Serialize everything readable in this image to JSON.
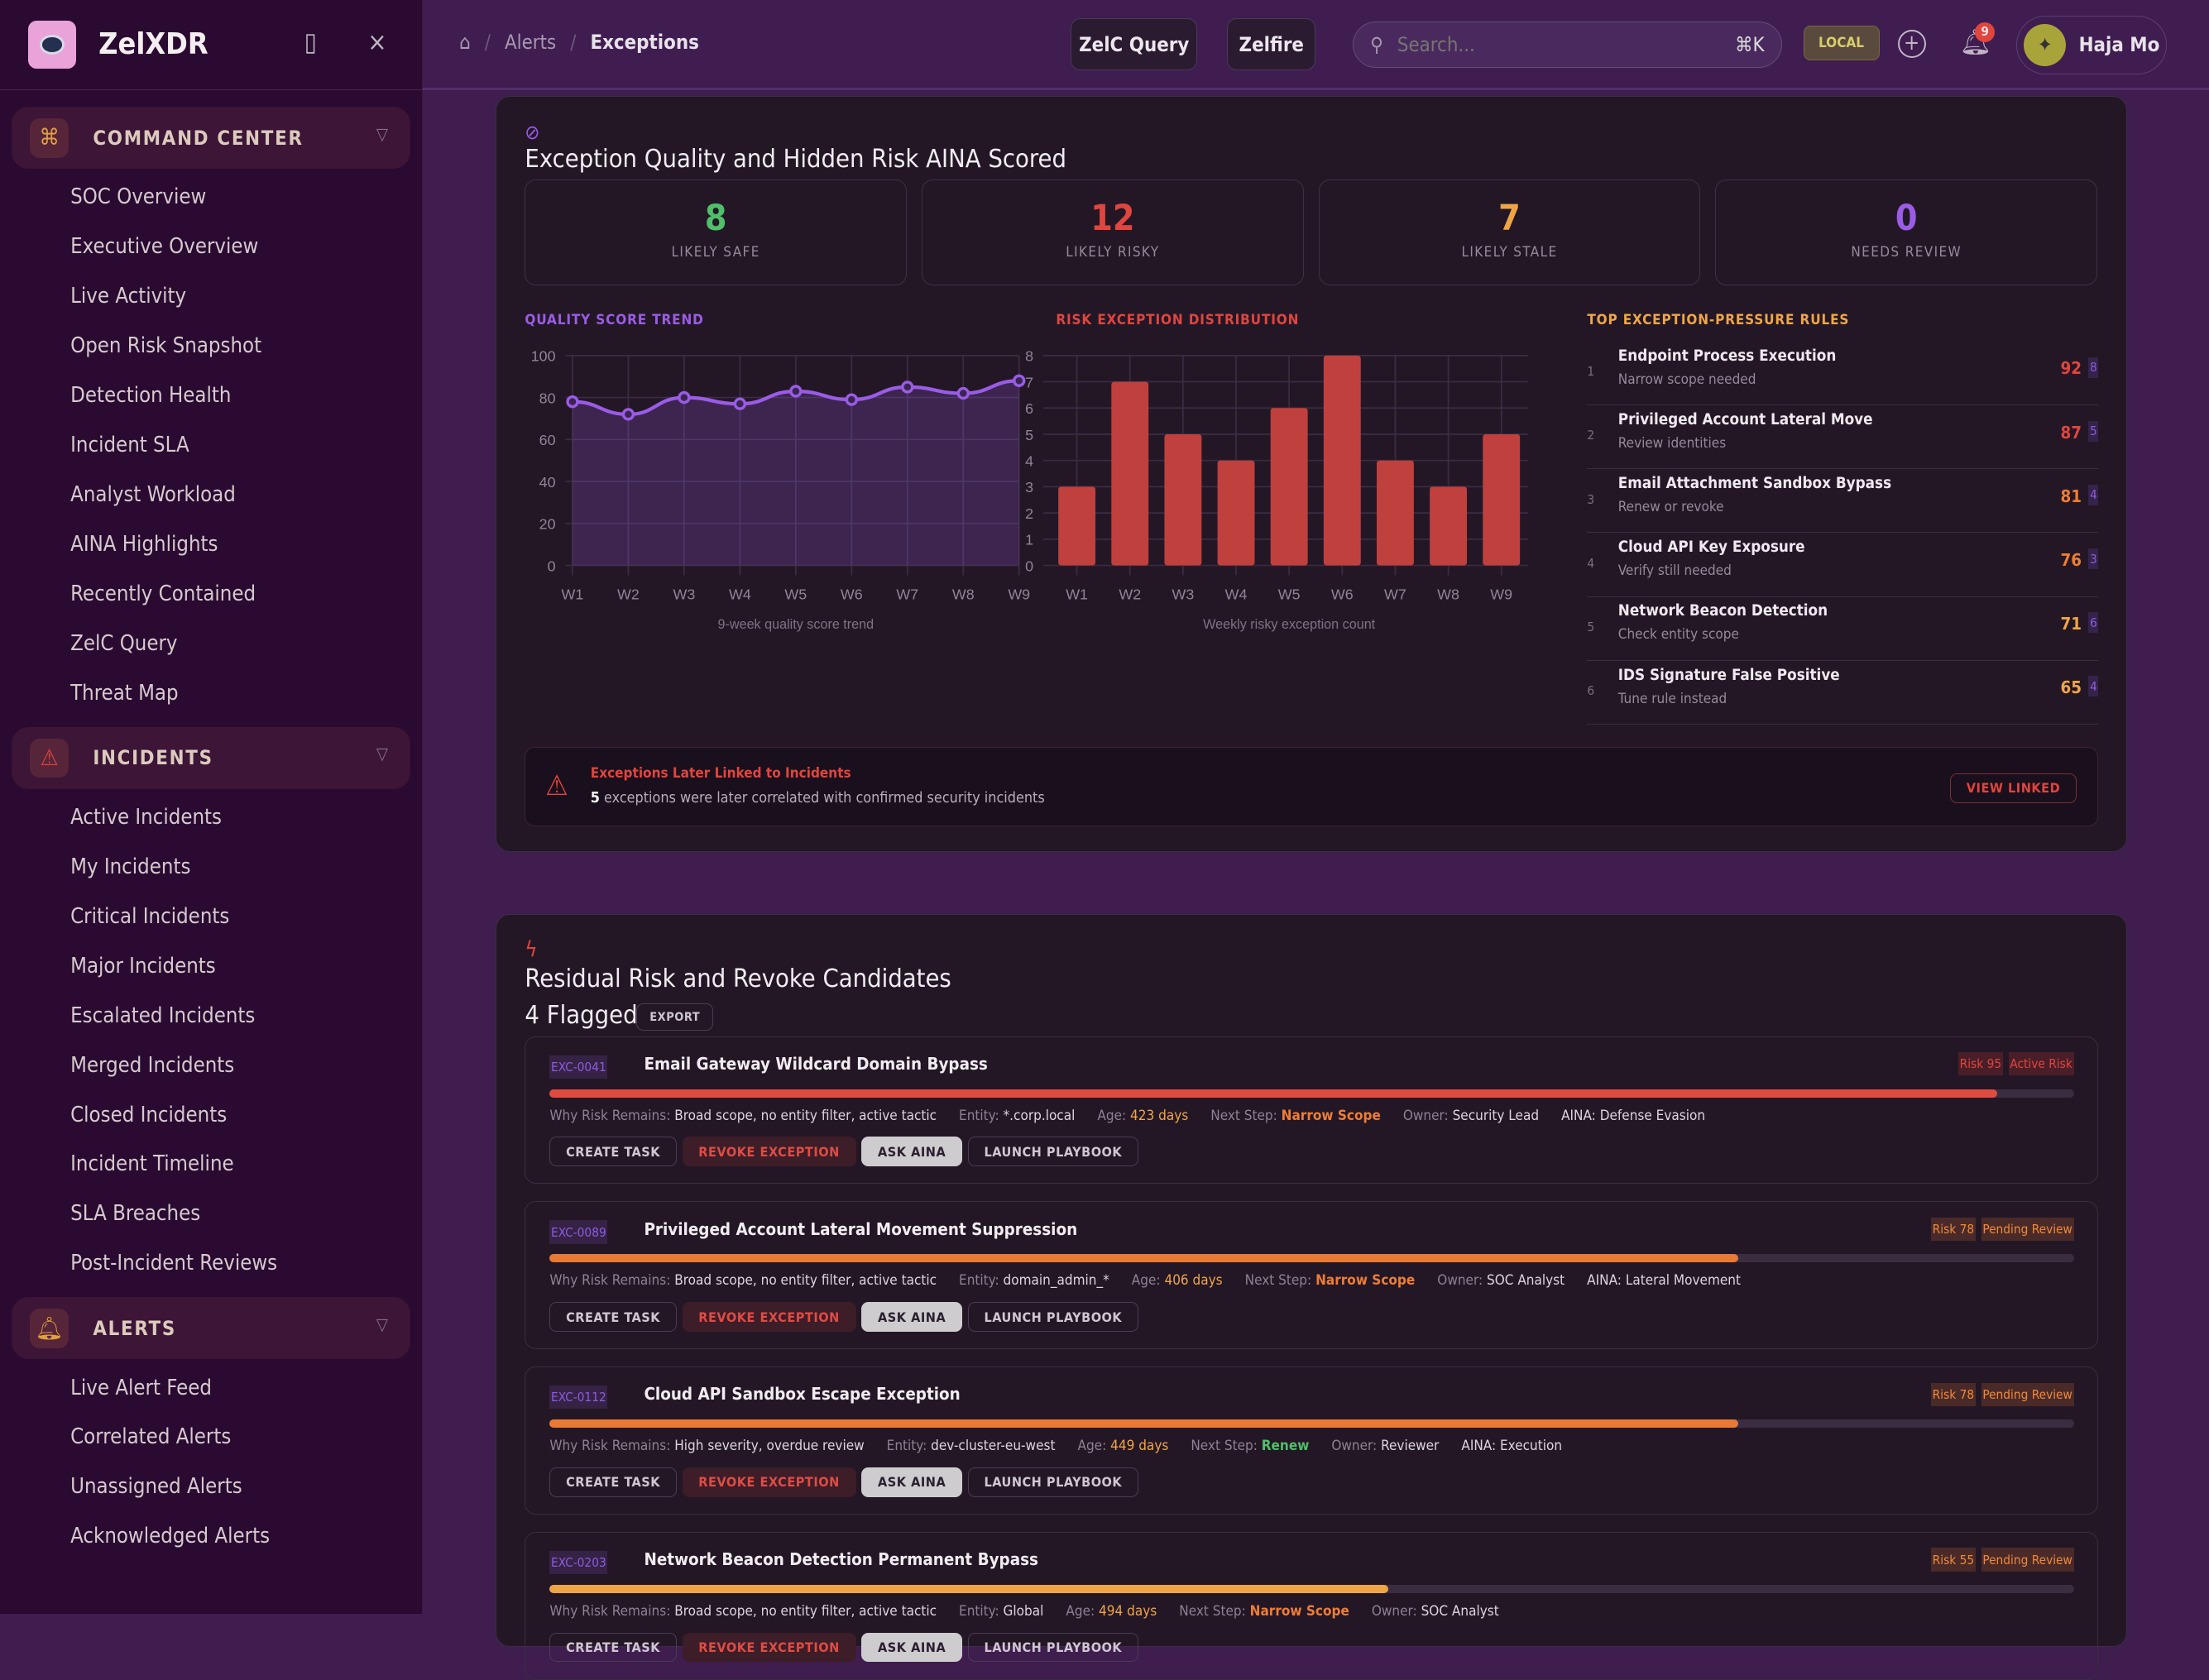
{
  "app": {
    "name": "ZelXDR"
  },
  "sidebar": {
    "sections": [
      {
        "title": "COMMAND CENTER",
        "icon": "command-icon",
        "items": [
          "SOC Overview",
          "Executive Overview",
          "Live Activity",
          "Open Risk Snapshot",
          "Detection Health",
          "Incident SLA",
          "Analyst Workload",
          "AINA Highlights",
          "Recently Contained",
          "ZelC Query",
          "Threat Map"
        ]
      },
      {
        "title": "INCIDENTS",
        "icon": "warning-icon",
        "items": [
          "Active Incidents",
          "My Incidents",
          "Critical Incidents",
          "Major Incidents",
          "Escalated Incidents",
          "Merged Incidents",
          "Closed Incidents",
          "Incident Timeline",
          "SLA Breaches",
          "Post-Incident Reviews"
        ]
      },
      {
        "title": "ALERTS",
        "icon": "bell-icon",
        "items": [
          "Live Alert Feed",
          "Correlated Alerts",
          "Unassigned Alerts",
          "Acknowledged Alerts"
        ]
      }
    ]
  },
  "header": {
    "breadcrumb": [
      "Alerts",
      "Exceptions"
    ],
    "zelc_query": "ZelC Query",
    "zelfire": "Zelfire",
    "search_placeholder": "Search...",
    "shortcut": "⌘K",
    "env": "LOCAL",
    "notifications": "9",
    "user": "Haja Mo"
  },
  "quality": {
    "title": "Exception Quality and Hidden Risk AINA Scored",
    "stats": [
      {
        "value": "8",
        "label": "LIKELY SAFE",
        "color": "#4fbf6a"
      },
      {
        "value": "12",
        "label": "LIKELY RISKY",
        "color": "#e0453e"
      },
      {
        "value": "7",
        "label": "LIKELY STALE",
        "color": "#f0a545"
      },
      {
        "value": "0",
        "label": "NEEDS REVIEW",
        "color": "#9a5ce6"
      }
    ],
    "rules_title": "TOP EXCEPTION-PRESSURE RULES",
    "rules": [
      {
        "rank": "1",
        "name": "Endpoint Process Execution",
        "note": "Narrow scope needed",
        "score": "92",
        "count": "8",
        "color": "#e0453e"
      },
      {
        "rank": "2",
        "name": "Privileged Account Lateral Move",
        "note": "Review identities",
        "score": "87",
        "count": "5",
        "color": "#e0453e"
      },
      {
        "rank": "3",
        "name": "Email Attachment Sandbox Bypass",
        "note": "Renew or revoke",
        "score": "81",
        "count": "4",
        "color": "#ef7d33"
      },
      {
        "rank": "4",
        "name": "Cloud API Key Exposure",
        "note": "Verify still needed",
        "score": "76",
        "count": "3",
        "color": "#ef7d33"
      },
      {
        "rank": "5",
        "name": "Network Beacon Detection",
        "note": "Check entity scope",
        "score": "71",
        "count": "6",
        "color": "#f0a545"
      },
      {
        "rank": "6",
        "name": "IDS Signature False Positive",
        "note": "Tune rule instead",
        "score": "65",
        "count": "4",
        "color": "#f0a545"
      }
    ],
    "alert": {
      "title": "Exceptions Later Linked to Incidents",
      "count": "5",
      "text": "exceptions were later correlated with confirmed security incidents",
      "button": "VIEW LINKED"
    }
  },
  "chart_data": [
    {
      "type": "area",
      "title": "QUALITY SCORE TREND",
      "caption": "9-week quality score trend",
      "categories": [
        "W1",
        "W2",
        "W3",
        "W4",
        "W5",
        "W6",
        "W7",
        "W8",
        "W9"
      ],
      "values": [
        78,
        72,
        80,
        77,
        83,
        79,
        85,
        82,
        88
      ],
      "ylim": [
        0,
        100
      ],
      "yticks": [
        0,
        20,
        40,
        60,
        80,
        100
      ],
      "grid": true,
      "color": "#9a5ce6"
    },
    {
      "type": "bar",
      "title": "RISK EXCEPTION DISTRIBUTION",
      "caption": "Weekly risky exception count",
      "categories": [
        "W1",
        "W2",
        "W3",
        "W4",
        "W5",
        "W6",
        "W7",
        "W8",
        "W9"
      ],
      "values": [
        3,
        7,
        5,
        4,
        6,
        8,
        4,
        3,
        5
      ],
      "ylim": [
        0,
        8
      ],
      "yticks": [
        0,
        1,
        2,
        3,
        4,
        5,
        6,
        7,
        8
      ],
      "grid": true,
      "color": "#c0403e"
    }
  ],
  "residual": {
    "title": "Residual Risk and Revoke Candidates",
    "flagged": "4 Flagged",
    "export": "EXPORT",
    "labels": {
      "why": "Why Risk Remains:",
      "entity": "Entity:",
      "age": "Age:",
      "next": "Next Step:",
      "owner": "Owner:",
      "aina": "AINA:"
    },
    "actions": {
      "create": "CREATE TASK",
      "revoke": "REVOKE EXCEPTION",
      "ask": "ASK AINA",
      "launch": "LAUNCH PLAYBOOK"
    },
    "items": [
      {
        "id": "EXC-0041",
        "title": "Email Gateway Wildcard Domain Bypass",
        "risk": "Risk 95",
        "status": "Active Risk",
        "risk_pct": 95,
        "bar_color": "#e04b40",
        "why": "Broad scope, no entity filter, active tactic",
        "entity": "*.corp.local",
        "age": "423 days",
        "next": "Narrow Scope",
        "next_color": "#ef7d33",
        "owner": "Security Lead",
        "aina": "Defense Evasion",
        "badge_color": "#e0453e",
        "badge_bg": "#4a1e28"
      },
      {
        "id": "EXC-0089",
        "title": "Privileged Account Lateral Movement Suppression",
        "risk": "Risk 78",
        "status": "Pending Review",
        "risk_pct": 78,
        "bar_color": "#e87a35",
        "why": "Broad scope, no entity filter, active tactic",
        "entity": "domain_admin_*",
        "age": "406 days",
        "next": "Narrow Scope",
        "next_color": "#ef7d33",
        "owner": "SOC Analyst",
        "aina": "Lateral Movement",
        "badge_color": "#ef8a3a",
        "badge_bg": "#4a2a28"
      },
      {
        "id": "EXC-0112",
        "title": "Cloud API Sandbox Escape Exception",
        "risk": "Risk 78",
        "status": "Pending Review",
        "risk_pct": 78,
        "bar_color": "#e87a35",
        "why": "High severity, overdue review",
        "entity": "dev-cluster-eu-west",
        "age": "449 days",
        "next": "Renew",
        "next_color": "#4fbf6a",
        "owner": "Reviewer",
        "aina": "Execution",
        "badge_color": "#ef8a3a",
        "badge_bg": "#4a2a28"
      },
      {
        "id": "EXC-0203",
        "title": "Network Beacon Detection Permanent Bypass",
        "risk": "Risk 55",
        "status": "Pending Review",
        "risk_pct": 55,
        "bar_color": "#f0a545",
        "why": "Broad scope, no entity filter, active tactic",
        "entity": "Global",
        "age": "494 days",
        "next": "Narrow Scope",
        "next_color": "#ef7d33",
        "owner": "SOC Analyst",
        "aina": "",
        "badge_color": "#ef8a3a",
        "badge_bg": "#4a2a28"
      }
    ]
  }
}
